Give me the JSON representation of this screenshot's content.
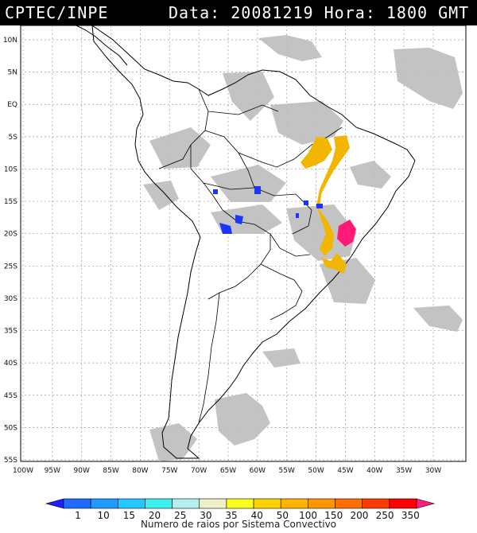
{
  "header": {
    "org": "CPTEC/INPE",
    "datetime": "Data: 20081219 Hora: 1800 GMT"
  },
  "map": {
    "lat_labels": [
      "10N",
      "5N",
      "EQ",
      "5S",
      "10S",
      "15S",
      "20S",
      "25S",
      "30S",
      "35S",
      "40S",
      "45S",
      "50S",
      "55S"
    ],
    "lon_labels": [
      "100W",
      "95W",
      "90W",
      "85W",
      "80W",
      "75W",
      "70W",
      "65W",
      "60W",
      "55W",
      "50W",
      "45W",
      "40W",
      "35W",
      "30W"
    ],
    "colors": {
      "cloud": "#bdbdbd",
      "land_outline": "#000000",
      "grid": "#9a9a9a",
      "yellow": "#f2b600",
      "blue": "#1a35ff",
      "magenta": "#ff1a78"
    }
  },
  "colorbar": {
    "ticks": [
      "1",
      "10",
      "15",
      "20",
      "25",
      "30",
      "35",
      "40",
      "50",
      "100",
      "150",
      "200",
      "250",
      "350"
    ],
    "colors": [
      "#1f1fff",
      "#1f6bff",
      "#1f9bff",
      "#22c8ff",
      "#3cf0f0",
      "#b4f0f0",
      "#f0f0c8",
      "#ffff1e",
      "#ffd200",
      "#ffb400",
      "#ff9600",
      "#ff6e00",
      "#ff3c00",
      "#ff0000",
      "#ff1e78"
    ],
    "label": "Numero de raios por Sistema Convectivo"
  }
}
